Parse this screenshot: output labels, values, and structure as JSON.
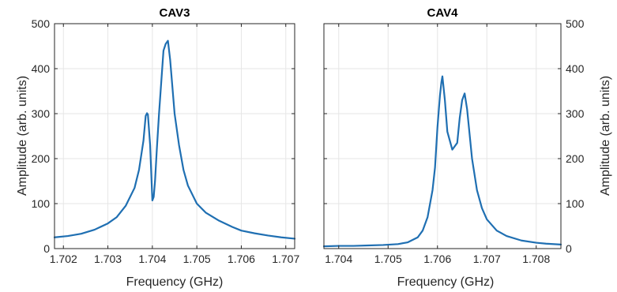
{
  "figure": {
    "ylabel": "Amplitude (arb. units)",
    "xlabel": "Frequency (GHz)"
  },
  "chart_data": [
    {
      "type": "line",
      "title": "CAV3",
      "xlabel": "Frequency (GHz)",
      "ylabel": "Amplitude (arb. units)",
      "xlim": [
        1.7018,
        1.7072
      ],
      "ylim": [
        0,
        500
      ],
      "xticks": [
        1.702,
        1.703,
        1.704,
        1.705,
        1.706,
        1.707
      ],
      "xtick_labels": [
        "1.702",
        "1.703",
        "1.704",
        "1.705",
        "1.706",
        "1.707"
      ],
      "yticks": [
        0,
        100,
        200,
        300,
        400,
        500
      ],
      "ytick_labels": [
        "0",
        "100",
        "200",
        "300",
        "400",
        "500"
      ],
      "y_axis_side": "left",
      "grid": true,
      "color": "#1f6fb2",
      "series": [
        {
          "x": [
            1.7018,
            1.7021,
            1.7024,
            1.7027,
            1.703,
            1.7032,
            1.7034,
            1.7036,
            1.7037,
            1.7038,
            1.70385,
            1.70388,
            1.7039,
            1.70395,
            1.704,
            1.70403,
            1.70406,
            1.7041,
            1.70415,
            1.7042,
            1.70425,
            1.7043,
            1.70435,
            1.7044,
            1.70445,
            1.7045,
            1.7046,
            1.7047,
            1.7048,
            1.705,
            1.7052,
            1.7055,
            1.7058,
            1.706,
            1.7063,
            1.7066,
            1.7069,
            1.7072
          ],
          "y": [
            25,
            28,
            33,
            42,
            56,
            70,
            95,
            135,
            175,
            240,
            295,
            301,
            298,
            230,
            107,
            115,
            150,
            220,
            300,
            370,
            440,
            455,
            462,
            420,
            360,
            300,
            230,
            175,
            140,
            100,
            80,
            62,
            48,
            40,
            34,
            29,
            25,
            22
          ]
        }
      ]
    },
    {
      "type": "line",
      "title": "CAV4",
      "xlabel": "Frequency (GHz)",
      "ylabel": "Amplitude (arb. units)",
      "xlim": [
        1.7037,
        1.7085
      ],
      "ylim": [
        0,
        500
      ],
      "xticks": [
        1.704,
        1.705,
        1.706,
        1.707,
        1.708
      ],
      "xtick_labels": [
        "1.704",
        "1.705",
        "1.706",
        "1.707",
        "1.708"
      ],
      "yticks": [
        0,
        100,
        200,
        300,
        400,
        500
      ],
      "ytick_labels": [
        "0",
        "100",
        "200",
        "300",
        "400",
        "500"
      ],
      "y_axis_side": "right",
      "grid": true,
      "color": "#1f6fb2",
      "series": [
        {
          "x": [
            1.7037,
            1.704,
            1.7043,
            1.7046,
            1.7049,
            1.7052,
            1.7054,
            1.7056,
            1.7057,
            1.7058,
            1.7059,
            1.70595,
            1.706,
            1.70605,
            1.70608,
            1.7061,
            1.70615,
            1.7062,
            1.7063,
            1.7064,
            1.70645,
            1.7065,
            1.70655,
            1.7066,
            1.7067,
            1.7068,
            1.7069,
            1.707,
            1.7072,
            1.7074,
            1.7077,
            1.708,
            1.7082,
            1.7085
          ],
          "y": [
            5,
            6,
            6,
            7,
            8,
            10,
            14,
            25,
            40,
            70,
            130,
            180,
            270,
            340,
            370,
            383,
            330,
            260,
            220,
            235,
            290,
            330,
            345,
            310,
            200,
            130,
            90,
            65,
            40,
            28,
            18,
            13,
            11,
            9
          ]
        }
      ]
    }
  ]
}
